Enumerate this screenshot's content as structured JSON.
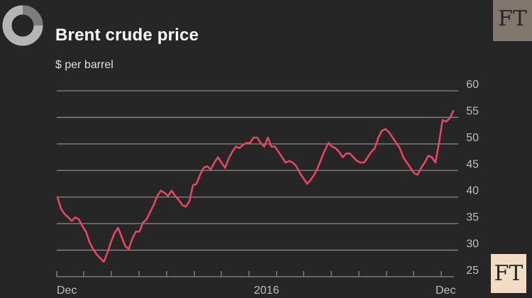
{
  "brand": {
    "logo_text": "FT",
    "series_color": "#e8455f",
    "background": "#262626"
  },
  "chart_data": {
    "type": "line",
    "title": "Brent crude price",
    "subtitle": "$ per barrel",
    "ylim": [
      25,
      60
    ],
    "y_ticks": [
      25,
      30,
      35,
      40,
      45,
      50,
      55,
      60
    ],
    "x_ticks": [
      "Dec",
      "2016",
      "Dec"
    ],
    "grid": true,
    "y_axis_side": "right",
    "series": [
      {
        "values": [
          40,
          37.8,
          36.8,
          36.2,
          35.5,
          36.2,
          35.8,
          34.5,
          33.5,
          31.5,
          30.2,
          29.2,
          28.5,
          27.8,
          29.5,
          31.5,
          33.2,
          34.2,
          32.5,
          30.8,
          30.2,
          32.2,
          33.5,
          33.5,
          35.2,
          35.8,
          37.2,
          38.5,
          40.2,
          41.2,
          40.8,
          40.2,
          41.2,
          40.2,
          39.5,
          38.5,
          38.2,
          39.2,
          42.2,
          42.5,
          44.2,
          45.5,
          45.8,
          45.2,
          46.5,
          47.5,
          46.5,
          45.5,
          47.2,
          48.5,
          49.5,
          49.2,
          49.8,
          50.2,
          50.2,
          51.2,
          51.2,
          50.2,
          49.5,
          51.2,
          49.5,
          49.5,
          48.5,
          47.5,
          46.5,
          46.8,
          46.5,
          45.8,
          44.5,
          43.5,
          42.5,
          43.2,
          44.2,
          45.5,
          47.2,
          48.8,
          50.2,
          49.5,
          49.2,
          48.5,
          47.5,
          48.2,
          48.2,
          47.5,
          46.8,
          46.5,
          46.5,
          47.5,
          48.5,
          49.2,
          51.2,
          52.5,
          52.8,
          52.2,
          51.2,
          50.2,
          49.2,
          47.5,
          46.5,
          45.5,
          44.5,
          44.2,
          45.5,
          46.5,
          47.8,
          47.5,
          46.5,
          50.2,
          54.5,
          54.2,
          54.8,
          56.2
        ]
      }
    ]
  }
}
